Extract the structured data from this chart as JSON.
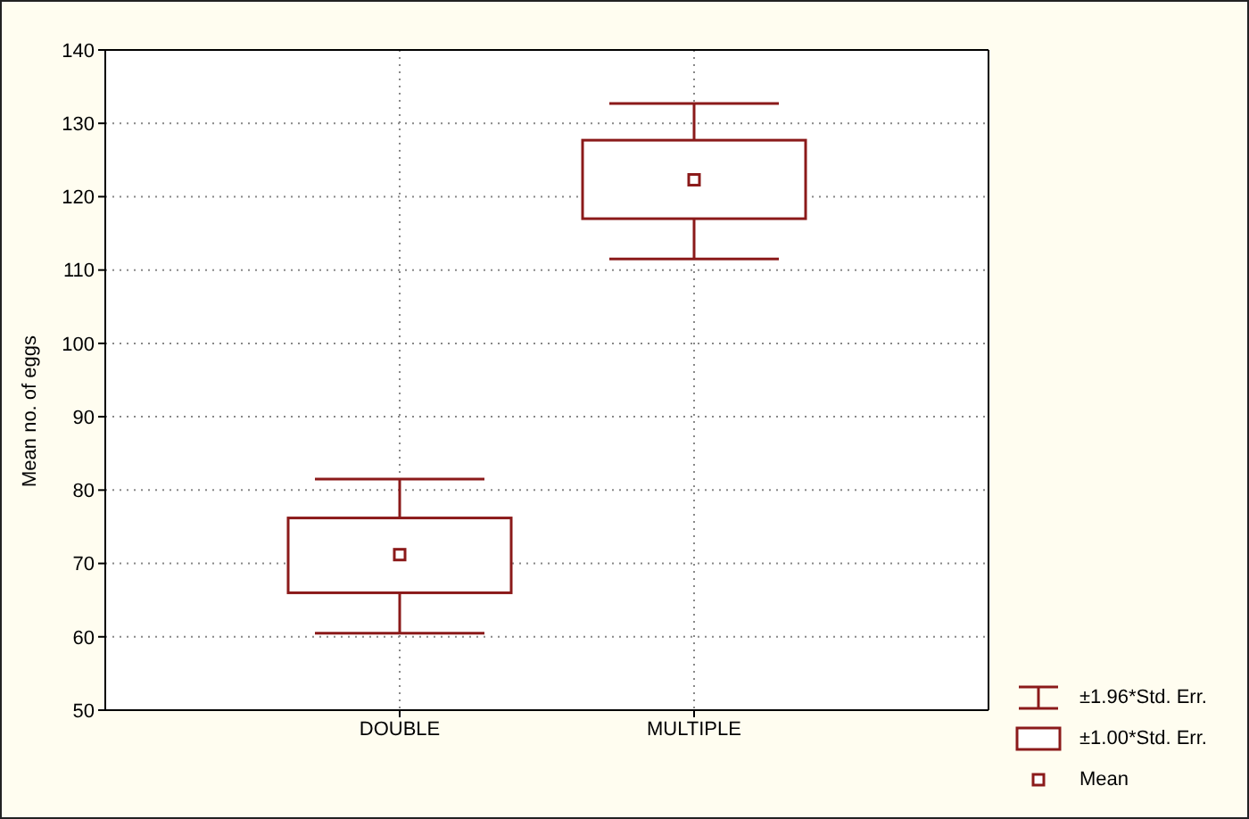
{
  "chart_data": {
    "type": "box",
    "ylabel": "Mean no. of eggs",
    "categories": [
      "DOUBLE",
      "MULTIPLE"
    ],
    "boxes": [
      {
        "low": 60.5,
        "q1": 66,
        "q3": 76.2,
        "high": 81.5,
        "mean": 71.2
      },
      {
        "low": 111.5,
        "q1": 117,
        "q3": 127.7,
        "high": 132.7,
        "mean": 122.3
      }
    ],
    "color": "#8b1a1a",
    "ylim": [
      50,
      140
    ],
    "yticks": [
      50,
      60,
      70,
      80,
      90,
      100,
      110,
      120,
      130,
      140
    ],
    "grid": true,
    "marker": "square",
    "annotations": [
      "±1.96*Std. Err.",
      "±1.00*Std. Err.",
      "Mean"
    ]
  }
}
